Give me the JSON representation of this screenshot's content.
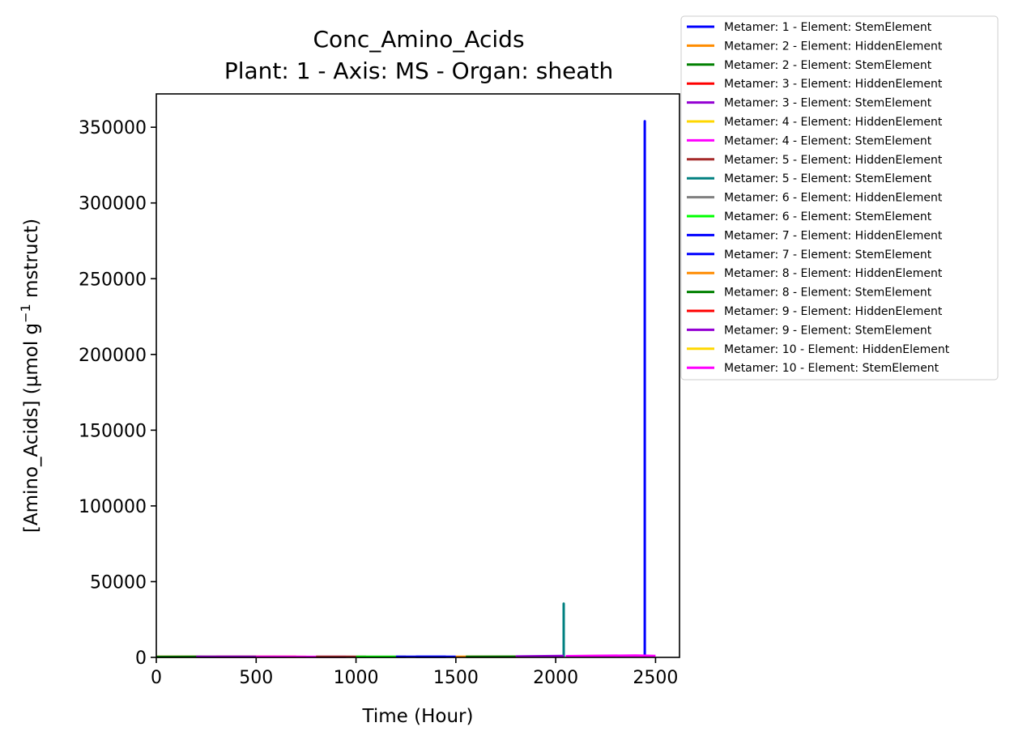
{
  "chart_data": {
    "type": "line",
    "title": "Conc_Amino_Acids",
    "subtitle": "Plant: 1 - Axis: MS - Organ: sheath",
    "xlabel": "Time (Hour)",
    "ylabel_main": "[Amino_Acids] (µmol g",
    "ylabel_sup": "−1",
    "ylabel_tail": " mstruct)",
    "xlim": [
      0,
      2620
    ],
    "ylim": [
      0,
      372000
    ],
    "x_ticks": [
      0,
      500,
      1000,
      1500,
      2000,
      2500
    ],
    "y_ticks": [
      0,
      50000,
      100000,
      150000,
      200000,
      250000,
      300000,
      350000
    ],
    "legend_position": "outside top-right",
    "series": [
      {
        "name": "Metamer: 1 - Element: StemElement",
        "color": "#0000ff",
        "x": [
          2446,
          2446,
          2446
        ],
        "y": [
          300,
          354000,
          300
        ]
      },
      {
        "name": "Metamer: 2 - Element: HiddenElement",
        "color": "#ff8c00",
        "x": [
          0,
          300
        ],
        "y": [
          400,
          350
        ]
      },
      {
        "name": "Metamer: 2 - Element: StemElement",
        "color": "#008000",
        "x": [
          0,
          200,
          400,
          600
        ],
        "y": [
          300,
          350,
          300,
          320
        ]
      },
      {
        "name": "Metamer: 3 - Element: HiddenElement",
        "color": "#ff0000",
        "x": [
          300,
          500,
          700
        ],
        "y": [
          400,
          350,
          380
        ]
      },
      {
        "name": "Metamer: 3 - Element: StemElement",
        "color": "#9400d3",
        "x": [
          200,
          400,
          650
        ],
        "y": [
          350,
          400,
          330
        ]
      },
      {
        "name": "Metamer: 4 - Element: HiddenElement",
        "color": "#ffd700",
        "x": [
          500,
          750
        ],
        "y": [
          380,
          340
        ]
      },
      {
        "name": "Metamer: 4 - Element: StemElement",
        "color": "#ff00ff",
        "x": [
          500,
          700,
          950
        ],
        "y": [
          350,
          390,
          330
        ]
      },
      {
        "name": "Metamer: 5 - Element: HiddenElement",
        "color": "#a52a2a",
        "x": [
          800,
          1050
        ],
        "y": [
          380,
          360
        ]
      },
      {
        "name": "Metamer: 5 - Element: StemElement",
        "color": "#008080",
        "x": [
          2040,
          2040,
          2040
        ],
        "y": [
          500,
          35500,
          500
        ]
      },
      {
        "name": "Metamer: 6 - Element: HiddenElement",
        "color": "#808080",
        "x": [
          1000,
          1250
        ],
        "y": [
          380,
          350
        ]
      },
      {
        "name": "Metamer: 6 - Element: StemElement",
        "color": "#00ff00",
        "x": [
          1000,
          1200
        ],
        "y": [
          300,
          320
        ]
      },
      {
        "name": "Metamer: 7 - Element: HiddenElement",
        "color": "#0000ff",
        "x": [
          1200,
          1450
        ],
        "y": [
          450,
          400
        ]
      },
      {
        "name": "Metamer: 7 - Element: StemElement",
        "color": "#0000ff",
        "x": [
          1300,
          1500
        ],
        "y": [
          400,
          420
        ]
      },
      {
        "name": "Metamer: 8 - Element: HiddenElement",
        "color": "#ff8c00",
        "x": [
          1500,
          1800
        ],
        "y": [
          400,
          450
        ]
      },
      {
        "name": "Metamer: 8 - Element: StemElement",
        "color": "#008000",
        "x": [
          1550,
          1800
        ],
        "y": [
          420,
          480
        ]
      },
      {
        "name": "Metamer: 9 - Element: HiddenElement",
        "color": "#ff0000",
        "x": [
          1800,
          2000
        ],
        "y": [
          500,
          600
        ]
      },
      {
        "name": "Metamer: 9 - Element: StemElement",
        "color": "#9400d3",
        "x": [
          1800,
          2040
        ],
        "y": [
          600,
          900
        ]
      },
      {
        "name": "Metamer: 10 - Element: HiddenElement",
        "color": "#ffd700",
        "x": [
          2100,
          2300
        ],
        "y": [
          800,
          1000
        ]
      },
      {
        "name": "Metamer: 10 - Element: StemElement",
        "color": "#ff00ff",
        "x": [
          2050,
          2200,
          2400,
          2500
        ],
        "y": [
          800,
          1000,
          1200,
          900
        ]
      }
    ]
  }
}
